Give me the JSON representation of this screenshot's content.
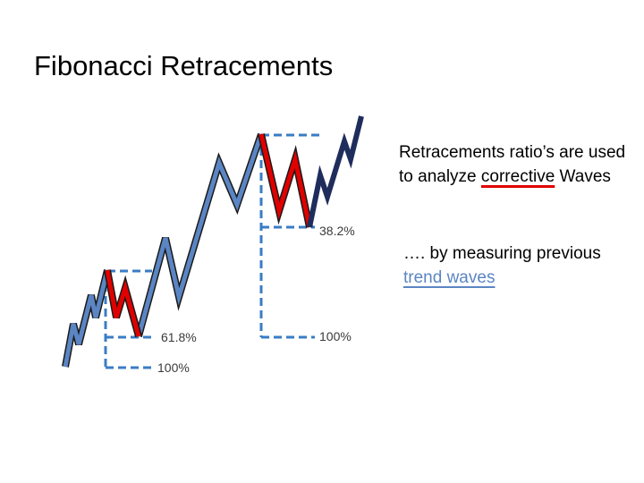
{
  "title": "Fibonacci Retracements",
  "labels": {
    "fib_382": "38.2%",
    "fib_100_right": "100%",
    "fib_618": "61.8%",
    "fib_100_left": "100%"
  },
  "notes": {
    "line1_prefix": "Retracements ratio’s are used to analyze",
    "line1_highlight": "corrective",
    "line1_suffix": " Waves",
    "line2_prefix": "…. by measuring previous ",
    "line2_highlight": "trend waves"
  },
  "colors": {
    "impulse": "#5b85c3",
    "correction": "#e00000",
    "new_trend": "#1f2d5c",
    "guide": "#3a7cc4"
  }
}
